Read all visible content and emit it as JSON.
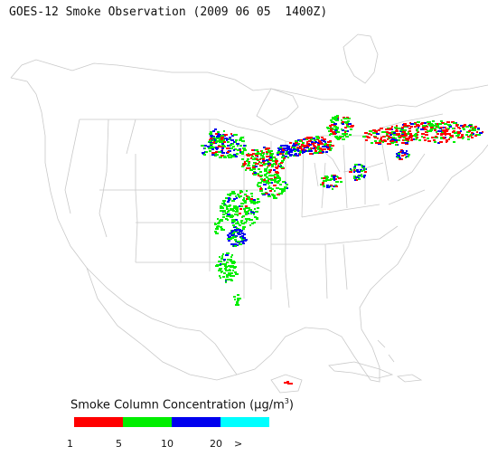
{
  "title": "GOES-12 Smoke Observation (2009 06 05  1400Z)",
  "legend": {
    "title_prefix": "Smoke Column Concentration (",
    "unit_mu": "μ",
    "unit_rest": "g/m",
    "unit_sup": "3",
    "title_suffix": ")",
    "colors": [
      "#ff0000",
      "#00ee00",
      "#0000ee",
      "#00ffff"
    ],
    "ticks": [
      "1",
      "5",
      "10",
      "20",
      ">"
    ]
  },
  "map_layers": {
    "boundary_color": "#cfcfcf",
    "smoke_color_order": [
      "low",
      "moderate",
      "high",
      "very-high"
    ]
  }
}
